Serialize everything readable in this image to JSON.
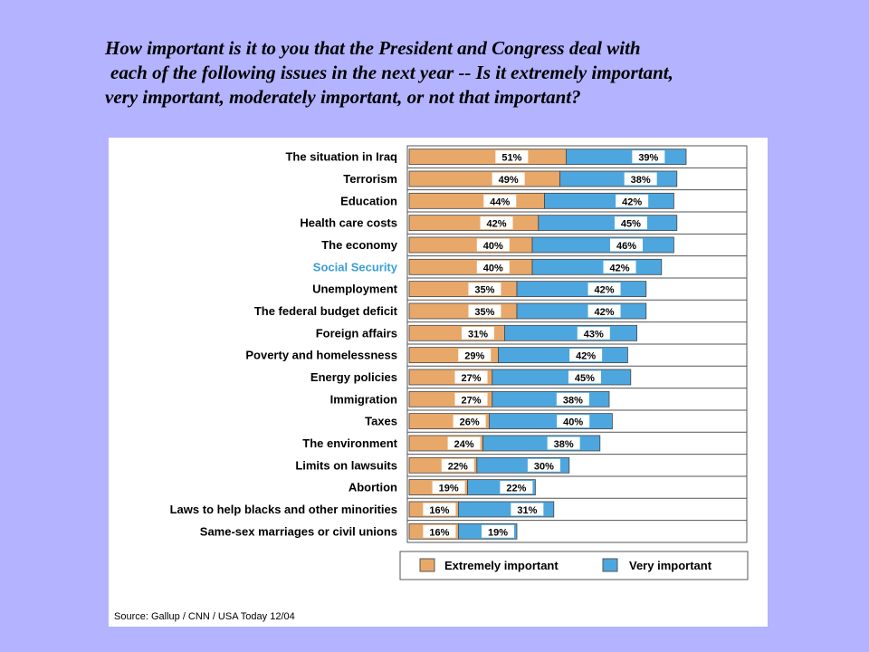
{
  "question": {
    "line1": "How important is it to you that the President and Congress deal with",
    "line2": "each of the following issues in the next year -- Is it extremely important,",
    "line3": "very important, moderately important, or not that important?"
  },
  "source": "Source: Gallup / CNN / USA Today 12/04",
  "colors": {
    "extremely": "#e8a86a",
    "very": "#4ea6de",
    "highlight_label": "#3a9ed8",
    "label": "#000000",
    "background": "#b3b3ff"
  },
  "chart_data": {
    "type": "bar",
    "orientation": "horizontal",
    "stacked": true,
    "categories": [
      "The situation in Iraq",
      "Terrorism",
      "Education",
      "Health care costs",
      "The economy",
      "Social Security",
      "Unemployment",
      "The federal budget deficit",
      "Foreign affairs",
      "Poverty and homelessness",
      "Energy policies",
      "Immigration",
      "Taxes",
      "The environment",
      "Limits on lawsuits",
      "Abortion",
      "Laws to help blacks and other minorities",
      "Same-sex marriages or civil unions"
    ],
    "highlighted_category": "Social Security",
    "series": [
      {
        "name": "Extremely important",
        "color": "#e8a86a",
        "values": [
          51,
          49,
          44,
          42,
          40,
          40,
          35,
          35,
          31,
          29,
          27,
          27,
          26,
          24,
          22,
          19,
          16,
          16
        ],
        "labels": [
          "51%",
          "49%",
          "44%",
          "42%",
          "40%",
          "40%",
          "35%",
          "35%",
          "31%",
          "29%",
          "27%",
          "27%",
          "26%",
          "24%",
          "22%",
          "19%",
          "16%",
          "16%"
        ]
      },
      {
        "name": "Very important",
        "color": "#4ea6de",
        "values": [
          39,
          38,
          42,
          45,
          46,
          42,
          42,
          42,
          43,
          42,
          45,
          38,
          40,
          38,
          30,
          22,
          31,
          19
        ],
        "labels": [
          "39%",
          "38%",
          "42%",
          "45%",
          "46%",
          "42%",
          "42%",
          "42%",
          "43%",
          "42%",
          "45%",
          "38%",
          "40%",
          "38%",
          "30%",
          "22%",
          "31%",
          "19%"
        ]
      }
    ],
    "xlim": [
      0,
      100
    ],
    "grid": true,
    "legend": "bottom"
  }
}
